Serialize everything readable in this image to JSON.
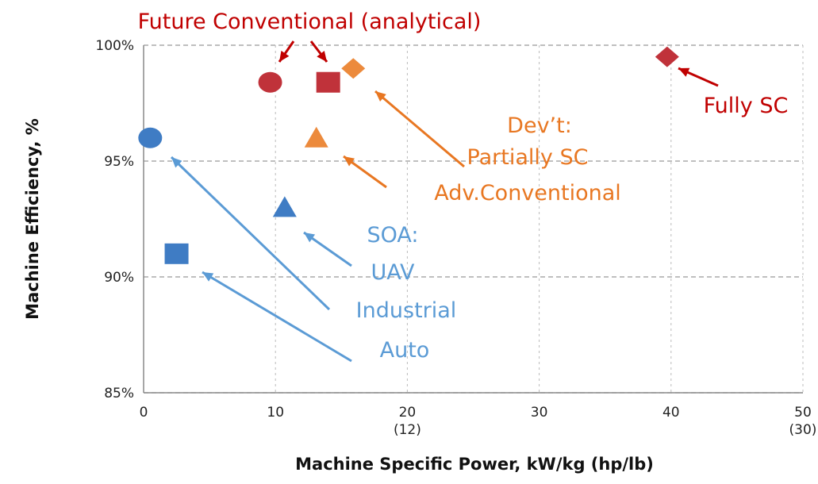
{
  "chart_data": {
    "type": "scatter",
    "x_label": "Machine Specific Power, kW/kg (hp/lb)",
    "y_label": "Machine Efficiency, %",
    "xlim": [
      0,
      50
    ],
    "xticks": [
      0,
      10,
      {
        "value": 20,
        "label": "20\n(12)"
      },
      30,
      40,
      {
        "value": 50,
        "label": "50\n(30)"
      }
    ],
    "ylim": [
      85,
      100
    ],
    "yticks": [
      {
        "value": 85,
        "label": "85%"
      },
      {
        "value": 90,
        "label": "90%"
      },
      {
        "value": 95,
        "label": "95%"
      },
      {
        "value": 100,
        "label": "100%"
      }
    ],
    "grid": true,
    "series": [
      {
        "color": "#3f7cc4",
        "markers": [
          "circle",
          "triangle",
          "square"
        ],
        "x": [
          0.5,
          10.7,
          2.5
        ],
        "values": [
          96,
          93,
          91
        ]
      },
      {
        "color": "#ec8a3c",
        "markers": [
          "triangle",
          "diamond"
        ],
        "x": [
          13.1,
          15.9
        ],
        "values": [
          96,
          99
        ]
      },
      {
        "color": "#c0323a",
        "markers": [
          "circle",
          "square",
          "diamond"
        ],
        "x": [
          9.6,
          14,
          39.7
        ],
        "values": [
          98.4,
          98.4,
          99.5
        ]
      }
    ],
    "annotations": [
      {
        "text": "Future Conventional (analytical)",
        "color": "#c00000"
      },
      {
        "text": "Fully SC",
        "color": "#c00000"
      },
      {
        "text": "Dev’t:",
        "color": "#e87722"
      },
      {
        "text": "Partially SC",
        "color": "#e87722"
      },
      {
        "text": "Adv.Conventional",
        "color": "#e87722"
      },
      {
        "text": "SOA:",
        "color": "#5b9bd5"
      },
      {
        "text": "UAV",
        "color": "#5b9bd5"
      },
      {
        "text": "Industrial",
        "color": "#5b9bd5"
      },
      {
        "text": "Auto",
        "color": "#5b9bd5"
      }
    ]
  }
}
